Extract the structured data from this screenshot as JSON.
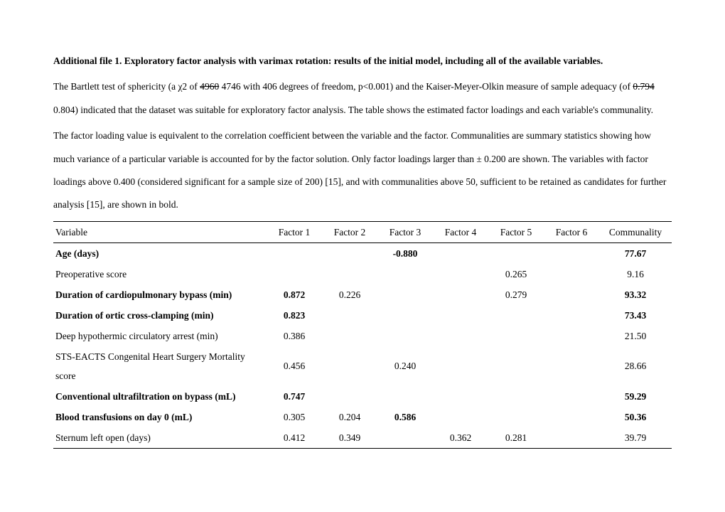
{
  "title_prefix": "Additional file 1",
  "title_rest": ". Exploratory factor analysis with varimax rotation: results of the initial model, including all of the available variables.",
  "p1_a": "The Bartlett test of sphericity (a χ2 of ",
  "p1_strike1": "4960",
  "p1_b": " 4746 with 406 degrees of freedom, p<0.001) and the Kaiser-Meyer-Olkin measure of sample adequacy (of ",
  "p1_strike2": "0.794",
  "p1_c": " 0.804) indicated that the dataset was suitable for exploratory factor analysis. The table shows the estimated factor loadings and each variable's communality.",
  "p2": "The factor loading value is equivalent to the correlation coefficient between the variable and the factor. Communalities are summary statistics showing how much variance of a particular variable is accounted for by the factor solution. Only factor loadings larger than ± 0.200 are shown. The variables with factor loadings above 0.400 (considered significant for a sample size of 200) [15], and with communalities above 50, sufficient to be retained as candidates for further analysis [15], are shown in bold.",
  "columns": [
    "Variable",
    "Factor 1",
    "Factor 2",
    "Factor 3",
    "Factor 4",
    "Factor 5",
    "Factor 6",
    "Communality"
  ],
  "rows": [
    {
      "bold": true,
      "var": "Age (days)",
      "f": [
        "",
        "",
        "-0.880",
        "",
        "",
        ""
      ],
      "c": "77.67",
      "boldCell": 2
    },
    {
      "bold": false,
      "var": "Preoperative score",
      "f": [
        "",
        "",
        "",
        "",
        "0.265",
        ""
      ],
      "c": "9.16"
    },
    {
      "bold": true,
      "var": "Duration of cardiopulmonary bypass (min)",
      "f": [
        "0.872",
        "0.226",
        "",
        "",
        "0.279",
        ""
      ],
      "c": "93.32",
      "boldCell": 0
    },
    {
      "bold": true,
      "var": "Duration of ortic cross-clamping (min)",
      "f": [
        "0.823",
        "",
        "",
        "",
        "",
        ""
      ],
      "c": "73.43",
      "boldCell": 0
    },
    {
      "bold": false,
      "var": "Deep hypothermic circulatory arrest (min)",
      "f": [
        "0.386",
        "",
        "",
        "",
        "",
        ""
      ],
      "c": "21.50"
    },
    {
      "bold": false,
      "var": "STS-EACTS Congenital Heart Surgery Mortality score",
      "f": [
        "0.456",
        "",
        "0.240",
        "",
        "",
        ""
      ],
      "c": "28.66"
    },
    {
      "bold": true,
      "var": "Conventional ultrafiltration on bypass (mL)",
      "f": [
        "0.747",
        "",
        "",
        "",
        "",
        ""
      ],
      "c": "59.29",
      "boldCell": 0
    },
    {
      "bold": true,
      "var": "Blood transfusions on day 0 (mL)",
      "f": [
        "0.305",
        "0.204",
        "0.586",
        "",
        "",
        ""
      ],
      "c": "50.36",
      "boldCell": 2
    },
    {
      "bold": false,
      "var": "Sternum left open (days)",
      "f": [
        "0.412",
        "0.349",
        "",
        "0.362",
        "0.281",
        ""
      ],
      "c": "39.79",
      "last": true
    }
  ]
}
